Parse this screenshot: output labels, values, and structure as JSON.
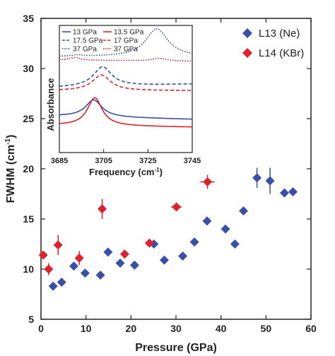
{
  "chart_data": [
    {
      "type": "scatter",
      "xlabel": "Pressure (GPa)",
      "ylabel": "FWHM (cm",
      "ylabel_sup": "-1",
      "ylabel_close": ")",
      "xlim": [
        0,
        60
      ],
      "ylim": [
        5,
        35
      ],
      "xticks": [
        "0",
        "10",
        "20",
        "30",
        "40",
        "50",
        "60"
      ],
      "yticks": [
        "5",
        "10",
        "15",
        "20",
        "25",
        "30",
        "35"
      ],
      "legend_position": "top-right",
      "series": [
        {
          "name": "L13 (Ne)",
          "color": "#3a4fa8",
          "marker": "diamond",
          "x": [
            2.7,
            4.6,
            7.3,
            9.8,
            13.2,
            14.9,
            17.6,
            20.8,
            25.1,
            27.4,
            31.5,
            34.1,
            36.9,
            41,
            43.1,
            45,
            48,
            50.9,
            54.1,
            56
          ],
          "y": [
            8.3,
            8.7,
            10.3,
            9.6,
            9.4,
            11.7,
            10.6,
            10.4,
            12.5,
            10.9,
            11.3,
            12.7,
            14.8,
            14,
            12.5,
            15.8,
            19.1,
            18.8,
            17.6,
            17.7
          ],
          "yerr": [
            0.3,
            0.3,
            0.3,
            0.3,
            0.3,
            0.3,
            0.3,
            0.3,
            0.3,
            0.3,
            0.3,
            0.3,
            0.3,
            0.3,
            0.3,
            0.3,
            1.0,
            1.3,
            0.4,
            0.3
          ]
        },
        {
          "name": "L14 (KBr)",
          "color": "#e0202a",
          "marker": "diamond",
          "x": [
            0.5,
            1.7,
            3.8,
            8.5,
            13.6,
            18.6,
            24.1,
            30.1,
            37
          ],
          "y": [
            11.4,
            10,
            12.4,
            11.1,
            16,
            11.5,
            12.6,
            16.2,
            18.7
          ],
          "yerr": [
            0.4,
            0.6,
            1.0,
            0.7,
            1.0,
            0.3,
            0.3,
            0.3,
            0.7
          ],
          "xerr": [
            0.8,
            0.8,
            0.8,
            0.8,
            0.8,
            0.8,
            0.8,
            1.2,
            1.6
          ]
        }
      ]
    },
    {
      "type": "line",
      "xlabel": "Frequency (cm",
      "xlabel_sup": "-1",
      "xlabel_close": ")",
      "ylabel": "Absorbance",
      "xlim": [
        3685,
        3745
      ],
      "xticks": [
        "3685",
        "3705",
        "3725",
        "3745"
      ],
      "legend": [
        {
          "label": "13 GPa",
          "color": "#3a4fa8",
          "dash": "solid"
        },
        {
          "label": "13.5 GPa",
          "color": "#e0202a",
          "dash": "solid"
        },
        {
          "label": "17.5 GPa",
          "color": "#3a4fa8",
          "dash": "dashed"
        },
        {
          "label": "17 GPa",
          "color": "#e0202a",
          "dash": "dashed"
        },
        {
          "label": "37 GPa",
          "color": "#3a4fa8",
          "dash": "dotted"
        },
        {
          "label": "37 GPa",
          "color": "#e0202a",
          "dash": "dotted"
        }
      ],
      "curves": [
        {
          "color": "#3a4fa8",
          "dash": "solid",
          "baseline": 0.56,
          "slope": -0.05,
          "peaks": [
            {
              "x": 3700.5,
              "h": 0.26,
              "w": 4.5
            }
          ]
        },
        {
          "color": "#e0202a",
          "dash": "solid",
          "baseline": 0.42,
          "slope": -0.03,
          "peaks": [
            {
              "x": 3701,
              "h": 0.43,
              "w": 4.0
            }
          ]
        },
        {
          "color": "#3a4fa8",
          "dash": "dashed",
          "baseline": 1.0,
          "slope": 0.05,
          "peaks": [
            {
              "x": 3704.5,
              "h": 0.3,
              "w": 5.0
            }
          ]
        },
        {
          "color": "#e0202a",
          "dash": "dashed",
          "baseline": 0.95,
          "slope": 0.0,
          "peaks": [
            {
              "x": 3704,
              "h": 0.24,
              "w": 5.0
            }
          ]
        },
        {
          "color": "#3a4fa8",
          "dash": "dotted",
          "baseline": 1.47,
          "slope": 0.0,
          "peaks": [
            {
              "x": 3729,
              "h": 0.43,
              "w": 6.0
            },
            {
              "x": 3693,
              "h": 0.02,
              "w": 3.0
            }
          ]
        },
        {
          "color": "#e0202a",
          "dash": "dotted",
          "baseline": 1.42,
          "slope": -0.02,
          "peaks": [
            {
              "x": 3692,
              "h": 0.04,
              "w": 3.0
            },
            {
              "x": 3730,
              "h": 0.04,
              "w": 4.0
            }
          ]
        }
      ]
    }
  ]
}
